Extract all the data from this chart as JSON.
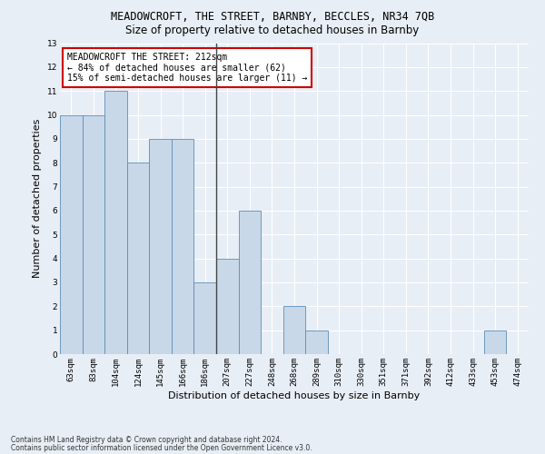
{
  "title": "MEADOWCROFT, THE STREET, BARNBY, BECCLES, NR34 7QB",
  "subtitle": "Size of property relative to detached houses in Barnby",
  "xlabel": "Distribution of detached houses by size in Barnby",
  "ylabel": "Number of detached properties",
  "categories": [
    "63sqm",
    "83sqm",
    "104sqm",
    "124sqm",
    "145sqm",
    "166sqm",
    "186sqm",
    "207sqm",
    "227sqm",
    "248sqm",
    "268sqm",
    "289sqm",
    "310sqm",
    "330sqm",
    "351sqm",
    "371sqm",
    "392sqm",
    "412sqm",
    "433sqm",
    "453sqm",
    "474sqm"
  ],
  "values": [
    10,
    10,
    11,
    8,
    9,
    9,
    3,
    4,
    6,
    0,
    2,
    1,
    0,
    0,
    0,
    0,
    0,
    0,
    0,
    1,
    0
  ],
  "bar_color": "#c8d8e8",
  "bar_edge_color": "#5b8db8",
  "annotation_text": "MEADOWCROFT THE STREET: 212sqm\n← 84% of detached houses are smaller (62)\n15% of semi-detached houses are larger (11) →",
  "annotation_box_color": "#ffffff",
  "annotation_box_edge": "#cc0000",
  "ylim": [
    0,
    13
  ],
  "yticks": [
    0,
    1,
    2,
    3,
    4,
    5,
    6,
    7,
    8,
    9,
    10,
    11,
    12,
    13
  ],
  "footer1": "Contains HM Land Registry data © Crown copyright and database right 2024.",
  "footer2": "Contains public sector information licensed under the Open Government Licence v3.0.",
  "bg_color": "#e8eef5",
  "grid_color": "#ffffff",
  "title_fontsize": 8.5,
  "subtitle_fontsize": 8.5,
  "tick_fontsize": 6.5,
  "ylabel_fontsize": 8,
  "xlabel_fontsize": 8,
  "annotation_fontsize": 7,
  "footer_fontsize": 5.5
}
